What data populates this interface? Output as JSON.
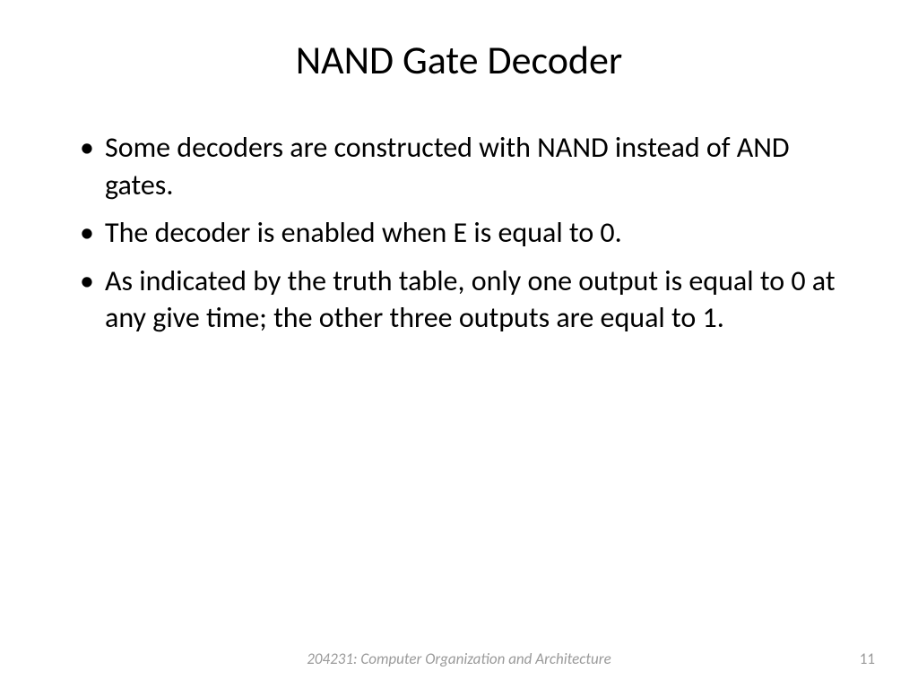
{
  "slide": {
    "title": "NAND Gate Decoder",
    "bullets": [
      "Some decoders are constructed with NAND instead of AND gates.",
      "The decoder is enabled when E is equal to 0.",
      "As indicated by the truth table, only one output is equal to 0 at any give time; the other three outputs are equal to 1."
    ],
    "footer_text": "204231: Computer Organization and Architecture",
    "page_number": "11",
    "colors": {
      "background": "#ffffff",
      "text": "#000000",
      "footer": "#9a9a9a"
    },
    "typography": {
      "title_fontsize": 44,
      "body_fontsize": 32,
      "footer_fontsize": 17,
      "font_family": "Calibri"
    }
  }
}
